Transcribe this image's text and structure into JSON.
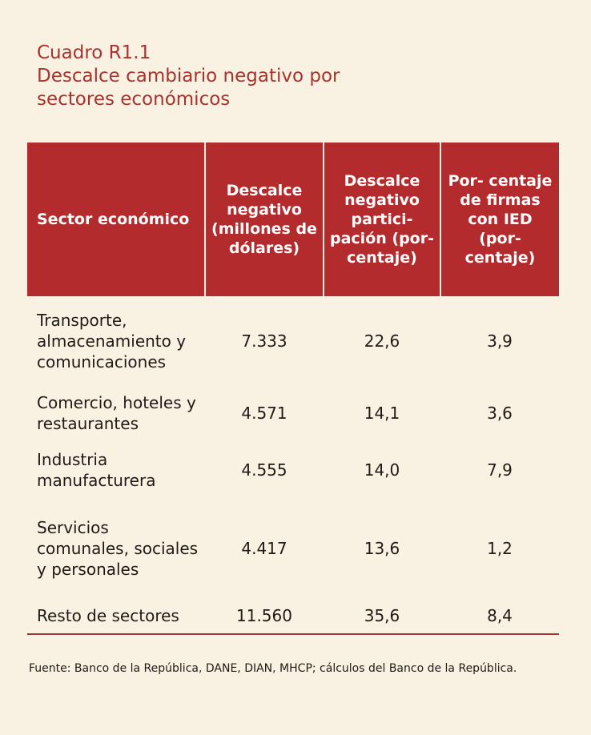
{
  "caption": {
    "id": "Cuadro R1.1",
    "title": "Descalce cambiario negativo por sectores económicos"
  },
  "table": {
    "headers": [
      "Sector económico",
      "Descalce negativo (millones de dólares)",
      "Descalce negativo partici- pación (por- centaje)",
      "Por- centaje de firmas con IED (por- centaje)"
    ],
    "rows": [
      [
        "Transporte, almacenamiento y comunicaciones",
        "7.333",
        "22,6",
        "3,9"
      ],
      [
        "Comercio, hoteles y restaurantes",
        "4.571",
        "14,1",
        "3,6"
      ],
      [
        "Industria manufacturera",
        "4.555",
        "14,0",
        "7,9"
      ],
      [
        "Servicios comunales, sociales y personales",
        "4.417",
        "13,6",
        "1,2"
      ],
      [
        "Resto de sectores",
        "11.560",
        "35,6",
        "8,4"
      ]
    ]
  },
  "source": "Fuente: Banco de la República, DANE, DIAN, MHCP; cálculos del Banco de la República.",
  "colors": {
    "header_bg": "#b42b2d",
    "title": "#a8322d",
    "background": "#f9f2e3"
  }
}
